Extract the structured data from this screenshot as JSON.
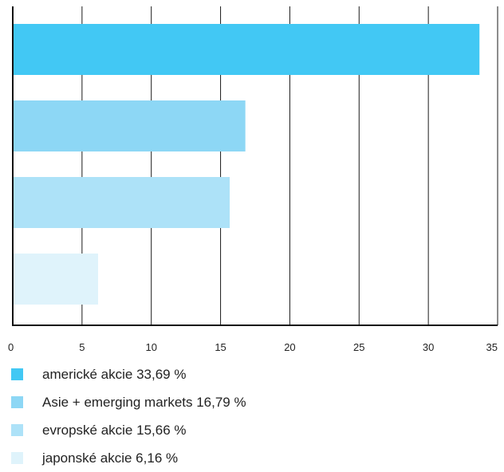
{
  "chart_data": {
    "type": "bar",
    "orientation": "horizontal",
    "categories": [
      "americké akcie",
      "Asie + emerging markets",
      "evropské akcie",
      "japonské akcie"
    ],
    "values": [
      33.69,
      16.79,
      15.66,
      6.16
    ],
    "colors": [
      "#42c8f4",
      "#8dd7f5",
      "#ade2f8",
      "#dff3fb"
    ],
    "xlim": [
      0,
      35
    ],
    "x_ticks": [
      "0",
      "5",
      "10",
      "15",
      "20",
      "25",
      "30",
      "35"
    ],
    "grid": true,
    "legend_position": "bottom",
    "legend": [
      "americké akcie 33,69 %",
      "Asie + emerging markets 16,79 %",
      "evropské akcie 15,66 %",
      "japonské akcie 6,16 %"
    ]
  }
}
